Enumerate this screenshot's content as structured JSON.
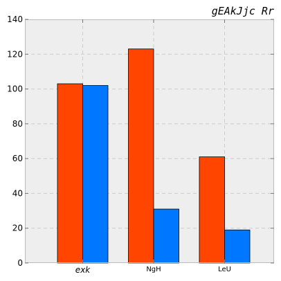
{
  "chart_data": {
    "type": "bar",
    "title": "gEAkJjc Rr",
    "xlabel": "",
    "ylabel": "",
    "categories": [
      "exk",
      "NgH",
      "LeU"
    ],
    "series": [
      {
        "values": [
          103,
          123,
          61
        ],
        "color": "#ff4500"
      },
      {
        "values": [
          102,
          31,
          19
        ],
        "color": "#0077ff"
      }
    ],
    "ylim": [
      0,
      140
    ],
    "yticks": [
      0,
      20,
      40,
      60,
      80,
      100,
      120,
      140
    ],
    "grid": true,
    "legend": "none",
    "plot_background": "#eeeeee"
  }
}
